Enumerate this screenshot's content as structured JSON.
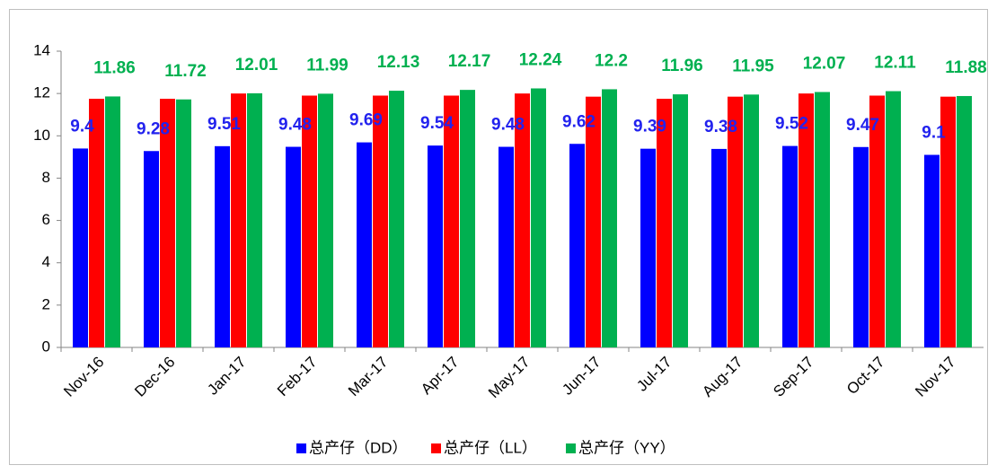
{
  "chart_data": {
    "type": "bar",
    "categories": [
      "Nov-16",
      "Dec-16",
      "Jan-17",
      "Feb-17",
      "Mar-17",
      "Apr-17",
      "May-17",
      "Jun-17",
      "Jul-17",
      "Aug-17",
      "Sep-17",
      "Oct-17",
      "Nov-17"
    ],
    "series": [
      {
        "name": "总产仔（DD）",
        "color": "#0000ff",
        "values": [
          9.4,
          9.28,
          9.51,
          9.48,
          9.69,
          9.54,
          9.48,
          9.62,
          9.39,
          9.38,
          9.52,
          9.47,
          9.1
        ],
        "labeled": true,
        "label_color": "#2222ee"
      },
      {
        "name": "总产仔（LL）",
        "color": "#ff0000",
        "values": [
          11.75,
          11.75,
          12.0,
          11.9,
          11.9,
          11.9,
          12.0,
          11.85,
          11.75,
          11.85,
          12.0,
          11.9,
          11.85
        ],
        "labeled": false
      },
      {
        "name": "总产仔（YY）",
        "color": "#00b050",
        "values": [
          11.86,
          11.72,
          12.01,
          11.99,
          12.13,
          12.17,
          12.24,
          12.2,
          11.96,
          11.95,
          12.07,
          12.11,
          11.88
        ],
        "labeled": true,
        "label_color": "#00b050"
      }
    ],
    "ylim": [
      0,
      14
    ],
    "yticks": [
      0,
      2,
      4,
      6,
      8,
      10,
      12,
      14
    ],
    "grid": false,
    "legend": "bottom"
  }
}
